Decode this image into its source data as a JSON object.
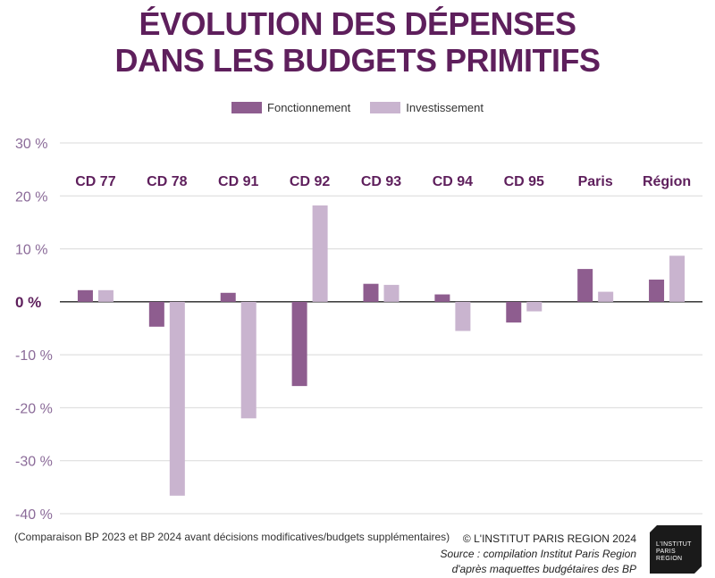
{
  "title": {
    "line1": "ÉVOLUTION DES DÉPENSES",
    "line2": "DANS LES BUDGETS PRIMITIFS"
  },
  "colors": {
    "title": "#5e1f5c",
    "fonctionnement": "#8e5d8f",
    "investissement": "#c9b4cf",
    "grid": "#d9d9d9",
    "tick": "#8b6b99"
  },
  "chart_data": {
    "type": "bar",
    "categories": [
      "CD 77",
      "CD 78",
      "CD 91",
      "CD 92",
      "CD 93",
      "CD 94",
      "CD 95",
      "Paris",
      "Région"
    ],
    "series": [
      {
        "name": "Fonctionnement",
        "values": [
          2.2,
          -4.7,
          1.7,
          -15.9,
          3.4,
          1.4,
          -3.9,
          6.2,
          4.2
        ]
      },
      {
        "name": "Investissement",
        "values": [
          2.2,
          -36.6,
          -22.0,
          18.2,
          3.2,
          -5.5,
          -1.8,
          1.9,
          8.7
        ]
      }
    ],
    "yticks": [
      "30 %",
      "20 %",
      "10 %",
      "0 %",
      "-10 %",
      "-20 %",
      "-30 %",
      "-40 %"
    ],
    "ylim": [
      -40,
      30
    ],
    "grid": true,
    "legend_position": "top-center"
  },
  "footnote": "(Comparaison BP 2023 et BP 2024 avant décisions modificatives/budgets supplémentaires)",
  "credits": {
    "copyright": "© L'INSTITUT PARIS REGION 2024",
    "source_line1": "Source : compilation Institut Paris Region",
    "source_line2": "d'après maquettes budgétaires des BP"
  },
  "logo": {
    "line1": "L'INSTITUT",
    "line2": "PARIS",
    "line3": "REGION"
  }
}
